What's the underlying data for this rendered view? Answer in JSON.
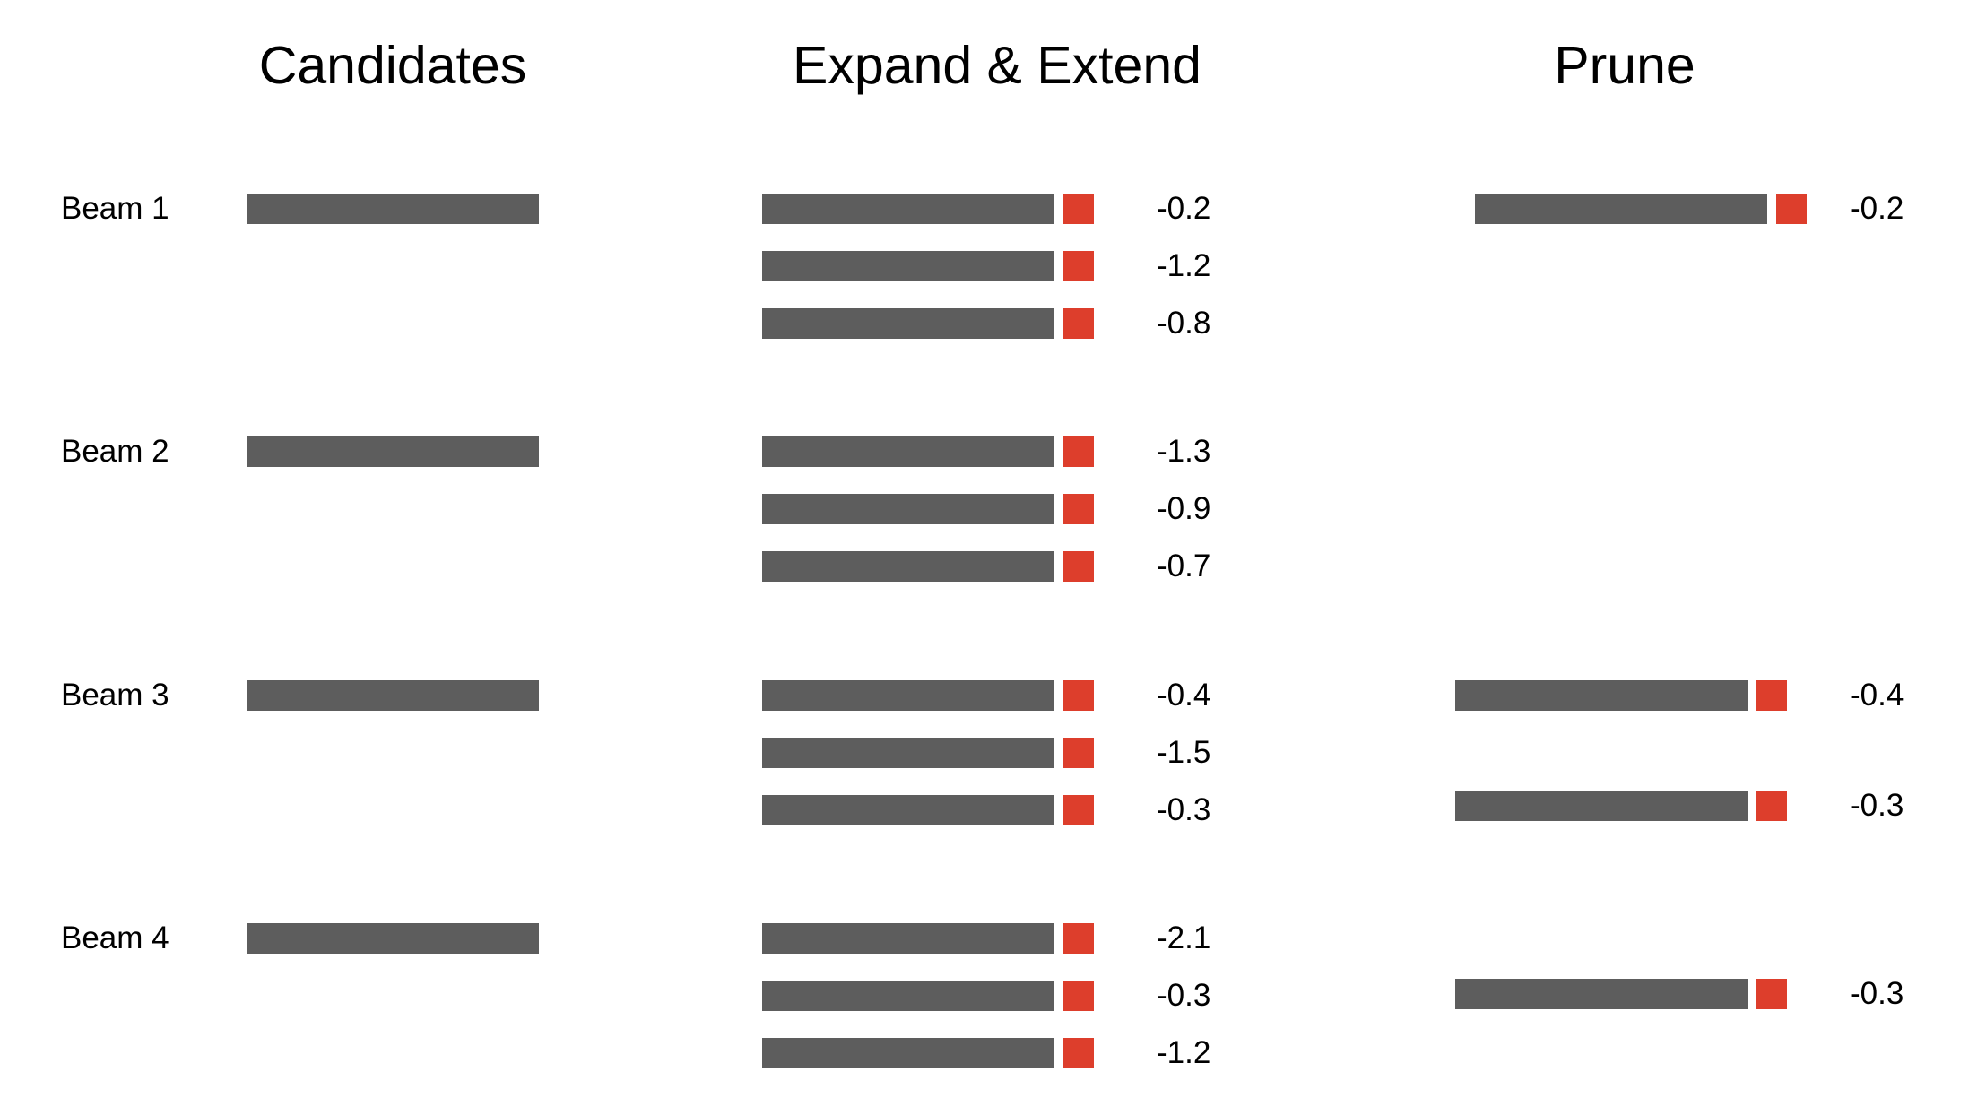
{
  "colors": {
    "sequence_bar": "#5d5d5d",
    "new_token": "#dd3e2c",
    "text": "#000000",
    "background": "#ffffff"
  },
  "columns": {
    "candidates": {
      "title": "Candidates"
    },
    "expand": {
      "title": "Expand & Extend"
    },
    "prune": {
      "title": "Prune"
    }
  },
  "beams": [
    {
      "label": "Beam 1",
      "expansions": [
        {
          "score": "-0.2"
        },
        {
          "score": "-1.2"
        },
        {
          "score": "-0.8"
        }
      ]
    },
    {
      "label": "Beam 2",
      "expansions": [
        {
          "score": "-1.3"
        },
        {
          "score": "-0.9"
        },
        {
          "score": "-0.7"
        }
      ]
    },
    {
      "label": "Beam 3",
      "expansions": [
        {
          "score": "-0.4"
        },
        {
          "score": "-1.5"
        },
        {
          "score": "-0.3"
        }
      ]
    },
    {
      "label": "Beam 4",
      "expansions": [
        {
          "score": "-2.1"
        },
        {
          "score": "-0.3"
        },
        {
          "score": "-1.2"
        }
      ]
    }
  ],
  "pruned": [
    {
      "score": "-0.2"
    },
    {
      "score": "-0.4"
    },
    {
      "score": "-0.3"
    },
    {
      "score": "-0.3"
    }
  ]
}
